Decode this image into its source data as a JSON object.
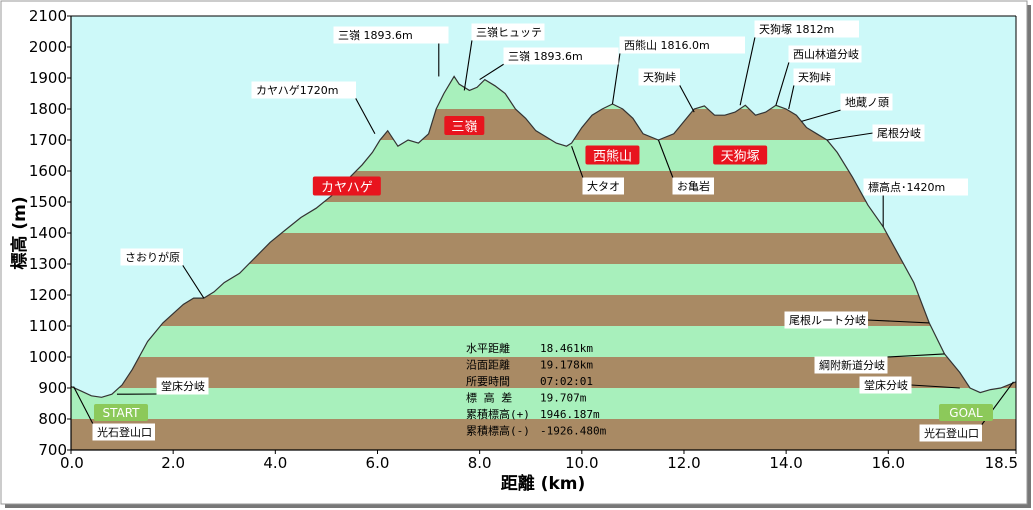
{
  "chart_data": {
    "type": "area",
    "xlabel": "距離 (km)",
    "ylabel": "標高 (m)",
    "xlim": [
      0,
      18.5
    ],
    "ylim": [
      700,
      2100
    ],
    "x_ticks": [
      "0.0",
      "2.0",
      "4.0",
      "6.0",
      "8.0",
      "10.0",
      "12.0",
      "14.0",
      "16.0",
      "18.5"
    ],
    "y_ticks": [
      "700",
      "800",
      "900",
      "1000",
      "1100",
      "1200",
      "1300",
      "1400",
      "1500",
      "1600",
      "1700",
      "1800",
      "1900",
      "2000",
      "2100"
    ],
    "band_colors": [
      "#a98a64",
      "#a8f0bc"
    ],
    "plot_background": "#cdf9f9",
    "series": [
      {
        "x": [
          0.0,
          0.2,
          0.4,
          0.6,
          0.8,
          1.0,
          1.2,
          1.5,
          1.8,
          2.0,
          2.2,
          2.4,
          2.6,
          2.8,
          3.0,
          3.3,
          3.6,
          3.9,
          4.2,
          4.5,
          4.8,
          5.1,
          5.4,
          5.7,
          5.9,
          6.05,
          6.2,
          6.4,
          6.6,
          6.8,
          7.0,
          7.15,
          7.3,
          7.5,
          7.6,
          7.8,
          7.95,
          8.1,
          8.3,
          8.5,
          8.7,
          8.9,
          9.1,
          9.3,
          9.5,
          9.7,
          9.8,
          10.0,
          10.2,
          10.4,
          10.6,
          10.8,
          11.0,
          11.2,
          11.5,
          11.8,
          12.0,
          12.2,
          12.4,
          12.6,
          12.8,
          13.0,
          13.2,
          13.4,
          13.6,
          13.8,
          14.0,
          14.2,
          14.4,
          14.6,
          14.8,
          15.0,
          15.3,
          15.6,
          15.9,
          16.2,
          16.5,
          16.8,
          17.1,
          17.4,
          17.6,
          17.8,
          18.0,
          18.2,
          18.5
        ],
        "y": [
          905,
          890,
          875,
          870,
          880,
          910,
          960,
          1050,
          1110,
          1140,
          1170,
          1190,
          1190,
          1210,
          1240,
          1270,
          1320,
          1370,
          1410,
          1450,
          1480,
          1520,
          1570,
          1620,
          1660,
          1700,
          1730,
          1680,
          1700,
          1690,
          1720,
          1800,
          1850,
          1905,
          1880,
          1860,
          1870,
          1895,
          1875,
          1850,
          1800,
          1770,
          1730,
          1710,
          1690,
          1680,
          1690,
          1740,
          1780,
          1800,
          1816,
          1800,
          1770,
          1720,
          1700,
          1720,
          1760,
          1800,
          1810,
          1780,
          1780,
          1790,
          1812,
          1780,
          1790,
          1812,
          1800,
          1780,
          1740,
          1720,
          1700,
          1660,
          1580,
          1490,
          1420,
          1330,
          1240,
          1110,
          1010,
          950,
          900,
          885,
          895,
          900,
          920
        ]
      }
    ],
    "peak_labels": [
      {
        "text": "カヤハゲ",
        "x": 5.4,
        "y": 1550
      },
      {
        "text": "三嶺",
        "x": 7.7,
        "y": 1745
      },
      {
        "text": "西熊山",
        "x": 10.6,
        "y": 1650
      },
      {
        "text": "天狗塚",
        "x": 13.1,
        "y": 1650
      }
    ],
    "annotations": [
      {
        "text": "三嶺 1893.6m",
        "x": 7.2,
        "y": 1905
      },
      {
        "text": "三嶺ヒュッテ",
        "x": 7.7,
        "y": 1860
      },
      {
        "text": "三嶺 1893.6m",
        "x": 8.0,
        "y": 1895
      },
      {
        "text": "カヤハゲ1720m",
        "x": 5.95,
        "y": 1720
      },
      {
        "text": "西熊山 1816.0m",
        "x": 10.6,
        "y": 1816
      },
      {
        "text": "天狗塚 1812m",
        "x": 13.1,
        "y": 1812
      },
      {
        "text": "西山林道分岐",
        "x": 13.8,
        "y": 1812
      },
      {
        "text": "天狗峠",
        "x": 12.2,
        "y": 1790
      },
      {
        "text": "天狗峠",
        "x": 14.05,
        "y": 1800
      },
      {
        "text": "地蔵ノ頭",
        "x": 14.3,
        "y": 1760
      },
      {
        "text": "尾根分岐",
        "x": 14.8,
        "y": 1700
      },
      {
        "text": "大タオ",
        "x": 9.8,
        "y": 1680
      },
      {
        "text": "お亀岩",
        "x": 11.5,
        "y": 1700
      },
      {
        "text": "標高点･1420m",
        "x": 15.9,
        "y": 1420
      },
      {
        "text": "さおりが原",
        "x": 2.6,
        "y": 1190
      },
      {
        "text": "尾根ルート分岐",
        "x": 16.8,
        "y": 1110
      },
      {
        "text": "綱附新道分岐",
        "x": 17.1,
        "y": 1010
      },
      {
        "text": "堂床分岐",
        "x": 0.9,
        "y": 880
      },
      {
        "text": "堂床分岐",
        "x": 17.4,
        "y": 900
      },
      {
        "text": "光石登山口",
        "x": 0.05,
        "y": 905
      },
      {
        "text": "光石登山口",
        "x": 18.45,
        "y": 920
      }
    ],
    "badges": [
      {
        "text": "START",
        "x": 0.05
      },
      {
        "text": "GOAL",
        "x": 18.45
      }
    ],
    "stats": [
      {
        "label": "水平距離",
        "value": "18.461km"
      },
      {
        "label": "沿面距離",
        "value": "19.178km"
      },
      {
        "label": "所要時間",
        "value": "07:02:01"
      },
      {
        "label": "標 高 差",
        "value": "19.707m"
      },
      {
        "label": "累積標高(+)",
        "value": "1946.187m"
      },
      {
        "label": "累積標高(-)",
        "value": "-1926.480m"
      }
    ]
  }
}
